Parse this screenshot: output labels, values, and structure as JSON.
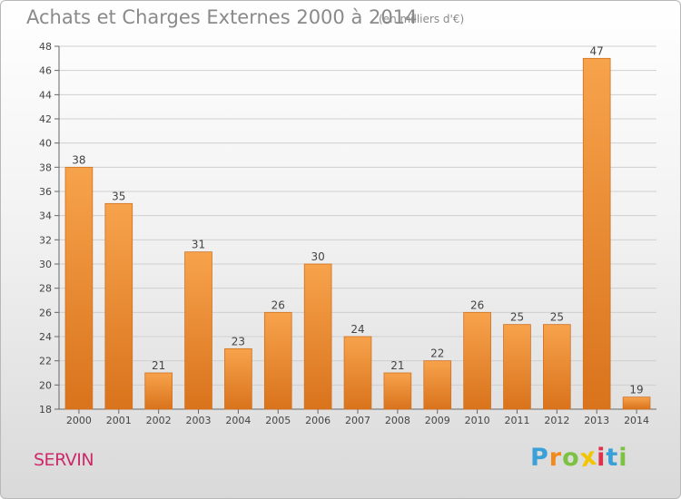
{
  "chart_data": {
    "type": "bar",
    "title": "Achats et Charges Externes 2000 à 2014",
    "subtitle": "(en milliers d'€)",
    "categories": [
      "2000",
      "2001",
      "2002",
      "2003",
      "2004",
      "2005",
      "2006",
      "2007",
      "2008",
      "2009",
      "2010",
      "2011",
      "2012",
      "2013",
      "2014"
    ],
    "values": [
      38,
      35,
      21,
      31,
      23,
      26,
      30,
      24,
      21,
      22,
      26,
      25,
      25,
      47,
      19
    ],
    "ylim": [
      18,
      48
    ],
    "yticks": [
      18,
      20,
      22,
      24,
      26,
      28,
      30,
      32,
      34,
      36,
      38,
      40,
      42,
      44,
      46,
      48
    ],
    "grid": true,
    "bar_color_light": "#f7a34c",
    "bar_color_dark": "#d9731c"
  },
  "footer": {
    "commune": "SERVIN",
    "logo": {
      "letters": [
        "P",
        "r",
        "o",
        "x",
        "i",
        "t",
        "i"
      ],
      "colors": [
        "#3aa0d8",
        "#f08a1c",
        "#7cc242",
        "#f2c500",
        "#e0304a",
        "#3aa0d8",
        "#7cc242"
      ]
    }
  }
}
